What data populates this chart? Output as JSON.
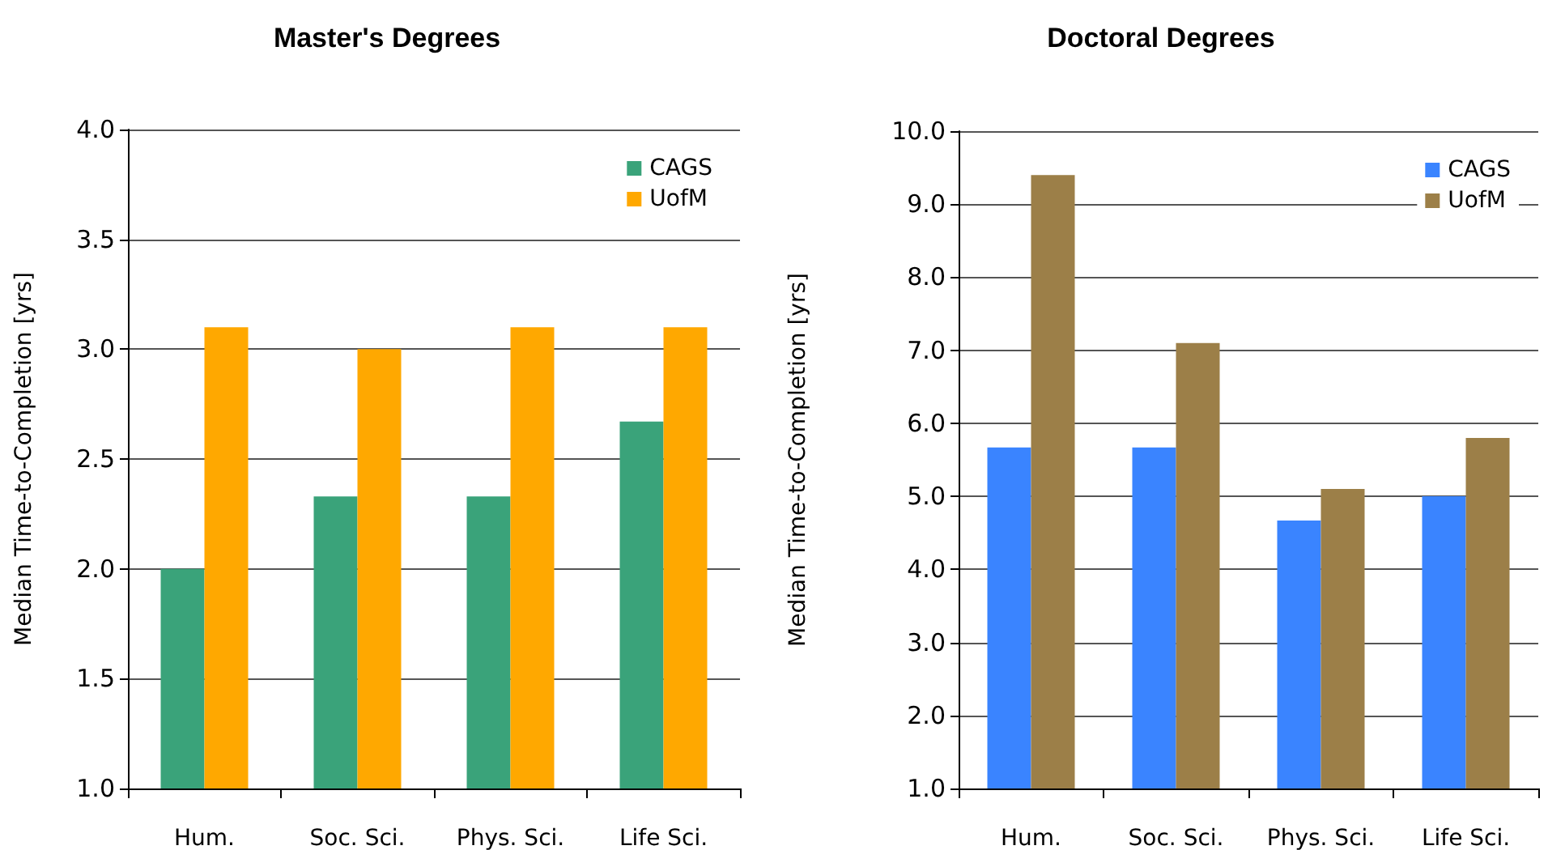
{
  "chart_data": [
    {
      "type": "bar",
      "title": "Master's Degrees",
      "ylabel": "Median Time-to-Completion [yrs]",
      "categories": [
        "Hum.",
        "Soc. Sci.",
        "Phys. Sci.",
        "Life Sci."
      ],
      "series": [
        {
          "name": "CAGS",
          "color": "#3aa37a",
          "values": [
            2.0,
            2.33,
            2.33,
            2.67
          ]
        },
        {
          "name": "UofM",
          "color": "#ffa800",
          "values": [
            3.1,
            3.0,
            3.1,
            3.1
          ]
        }
      ],
      "ylim": [
        1.0,
        4.0
      ],
      "yticks": [
        {
          "value": 1,
          "label": "1.0"
        },
        {
          "value": 1.5,
          "label": "1.5"
        },
        {
          "value": 2,
          "label": "2.0"
        },
        {
          "value": 2.5,
          "label": "2.5"
        },
        {
          "value": 3,
          "label": "3.0"
        },
        {
          "value": 3.5,
          "label": "3.5"
        },
        {
          "value": 4,
          "label": "4.0"
        }
      ],
      "grid": "y",
      "legend": "top right"
    },
    {
      "type": "bar",
      "title": "Doctoral Degrees",
      "ylabel": "Median Time-to-Completion [yrs]",
      "categories": [
        "Hum.",
        "Soc. Sci.",
        "Phys. Sci.",
        "Life Sci."
      ],
      "series": [
        {
          "name": "CAGS",
          "color": "#3a84ff",
          "values": [
            5.67,
            5.67,
            4.67,
            5.0
          ]
        },
        {
          "name": "UofM",
          "color": "#9c7f48",
          "values": [
            9.4,
            7.1,
            5.1,
            5.8
          ]
        }
      ],
      "ylim": [
        1.0,
        10.0
      ],
      "yticks": [
        {
          "value": 1,
          "label": "1.0"
        },
        {
          "value": 2,
          "label": "2.0"
        },
        {
          "value": 3,
          "label": "3.0"
        },
        {
          "value": 4,
          "label": "4.0"
        },
        {
          "value": 5,
          "label": "5.0"
        },
        {
          "value": 6,
          "label": "6.0"
        },
        {
          "value": 7,
          "label": "7.0"
        },
        {
          "value": 8,
          "label": "8.0"
        },
        {
          "value": 9,
          "label": "9.0"
        },
        {
          "value": 10,
          "label": "10.0"
        }
      ],
      "grid": "y",
      "legend": "top right"
    }
  ]
}
